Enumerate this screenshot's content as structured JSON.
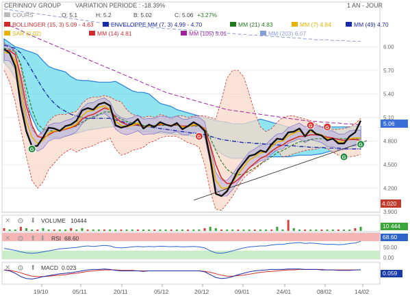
{
  "header": {
    "company": "CERINNOV GROUP",
    "variation": "VARIATION PERIODE : -18.39%",
    "period": "1 AN - JOUR"
  },
  "ohlc": {
    "cours_label": "COURS",
    "open": "O: 5.1",
    "high": "H: 5.2",
    "low": "B: 5.02",
    "close": "C: 5.06",
    "change": "+3.27%"
  },
  "legend": [
    {
      "text": "BOLLINGER (15, 3)  5.09 - 4.63",
      "color": "#d12c2c"
    },
    {
      "text": "ENVELOPPE MM (7, 3)  4.99 - 4.70",
      "color": "#1a2aa8"
    },
    {
      "text": "MM (21)  4.83",
      "color": "#1f7a1f"
    },
    {
      "text": "MM (7)  4.84",
      "color": "#e6b400"
    },
    {
      "text": "MM (49)  4.70",
      "color": "#1a2aa8"
    },
    {
      "text": "SAR (0.02)",
      "color": "#e6b400"
    },
    {
      "text": "MM (14)  4.81",
      "color": "#d12c2c"
    },
    {
      "text": "MM (105)  5.01",
      "color": "#a020a0"
    },
    {
      "text": "MM (203)  6.07",
      "color": "#8a9cd8"
    }
  ],
  "price_axis": {
    "ticks": [
      "6.00",
      "5.70",
      "5.40",
      "5.10",
      "4.800",
      "4.500",
      "4.200",
      "3.900"
    ],
    "current_label": "5.06",
    "low_label": "4.020"
  },
  "x_axis": {
    "labels": [
      "19/10",
      "05/11",
      "20/11",
      "05/12",
      "20/12",
      "09/01",
      "24/01",
      "08/02",
      "14/02"
    ]
  },
  "volume": {
    "title": "VOLUME",
    "value": "10444",
    "badge": "10 444"
  },
  "rsi": {
    "title": "RSI",
    "value": "68.60",
    "badge": "68.60",
    "ticks": [
      "50.00",
      "0.00"
    ]
  },
  "macd": {
    "title": "MACD",
    "value": "0.023",
    "badge": "0.059"
  },
  "colors": {
    "price": "#111111",
    "bollinger": "#d12c2c",
    "envelope_fill": "#5fd8e8",
    "bollinger_fill": "#f8d9c8",
    "inner_band_fill": "#b8aee0",
    "current_badge": "#3b6fd8",
    "low_badge": "#c0392b",
    "rsi_band_top": "#f5b5b5",
    "rsi_band_bottom": "#c9ecc9"
  },
  "chart_data": {
    "type": "line",
    "price": [
      5.97,
      5.92,
      5.75,
      5.25,
      4.92,
      4.73,
      4.74,
      4.85,
      4.97,
      4.96,
      4.93,
      4.99,
      5.01,
      5.06,
      5.19,
      5.22,
      5.2,
      5.27,
      5.29,
      5.25,
      5.0,
      4.97,
      4.99,
      5.02,
      5.08,
      4.96,
      5.01,
      4.98,
      5.04,
      5.01,
      4.99,
      5.03,
      4.95,
      4.99,
      5.04,
      5.0,
      4.93,
      4.57,
      4.13,
      4.1,
      4.16,
      4.29,
      4.43,
      4.52,
      4.61,
      4.63,
      4.68,
      4.66,
      4.76,
      4.83,
      4.82,
      4.91,
      4.92,
      4.96,
      4.86,
      4.95,
      4.89,
      4.87,
      4.81,
      4.83,
      4.77,
      4.77,
      4.86,
      4.91,
      5.06
    ],
    "bollinger_upper": [
      6.05,
      6.0,
      5.95,
      5.75,
      5.35,
      4.98,
      4.86,
      4.93,
      5.05,
      5.12,
      5.14,
      5.14,
      5.16,
      5.18,
      5.28,
      5.34,
      5.36,
      5.36,
      5.38,
      5.36,
      5.32,
      5.3,
      5.2,
      5.14,
      5.12,
      5.1,
      5.12,
      5.1,
      5.14,
      5.12,
      5.08,
      5.12,
      5.12,
      5.1,
      5.12,
      5.12,
      5.12,
      5.1,
      5.08,
      5.32,
      5.6,
      5.7,
      5.7,
      5.62,
      5.4,
      5.16,
      4.98,
      4.92,
      4.96,
      5.04,
      5.1,
      5.12,
      5.12,
      5.1,
      5.08,
      5.06,
      5.02,
      4.98,
      4.96,
      4.95,
      4.95,
      4.96,
      4.98,
      5.02,
      5.09
    ],
    "bollinger_lower": [
      5.7,
      5.55,
      5.3,
      4.95,
      4.6,
      4.3,
      4.2,
      4.28,
      4.44,
      4.52,
      4.6,
      4.66,
      4.7,
      4.66,
      4.7,
      4.72,
      4.74,
      4.78,
      4.8,
      4.84,
      4.7,
      4.62,
      4.64,
      4.68,
      4.7,
      4.72,
      4.78,
      4.8,
      4.84,
      4.86,
      4.86,
      4.86,
      4.82,
      4.78,
      4.76,
      4.72,
      4.5,
      4.16,
      3.93,
      3.92,
      4.0,
      4.1,
      4.22,
      4.33,
      4.39,
      4.44,
      4.5,
      4.58,
      4.66,
      4.68,
      4.6,
      4.61,
      4.64,
      4.66,
      4.68,
      4.69,
      4.7,
      4.72,
      4.7,
      4.66,
      4.62,
      4.6,
      4.6,
      4.61,
      4.63
    ],
    "envelope_upper": [
      6.1,
      6.05,
      6.0,
      5.98,
      5.95,
      5.93,
      5.9,
      5.82,
      5.75,
      5.72,
      5.7,
      5.68,
      5.62,
      5.58,
      5.57,
      5.57,
      5.56,
      5.55,
      5.55,
      5.55,
      5.56,
      5.52,
      5.48,
      5.44,
      5.42,
      5.42,
      5.4,
      5.34,
      5.28,
      5.26,
      5.24,
      5.2,
      5.18,
      5.16,
      5.14,
      5.12,
      5.1,
      5.08,
      5.06,
      5.05,
      5.04,
      5.02,
      5.02,
      5.02,
      5.04,
      5.06,
      5.08,
      5.06,
      5.04,
      5.02,
      5.0,
      4.98,
      4.96,
      4.95,
      4.95,
      4.96,
      4.97,
      4.98,
      4.98,
      4.98,
      4.98,
      4.98,
      4.98,
      4.99,
      4.99
    ],
    "envelope_lower": [
      5.8,
      5.72,
      5.6,
      5.45,
      5.28,
      5.1,
      4.95,
      4.88,
      4.85,
      4.84,
      4.85,
      4.86,
      4.88,
      4.9,
      4.92,
      4.94,
      4.95,
      4.96,
      4.97,
      4.98,
      4.98,
      4.97,
      4.96,
      4.95,
      4.94,
      4.92,
      4.92,
      4.91,
      4.9,
      4.89,
      4.89,
      4.88,
      4.88,
      4.87,
      4.86,
      4.86,
      4.84,
      4.78,
      4.7,
      4.64,
      4.6,
      4.58,
      4.58,
      4.58,
      4.58,
      4.59,
      4.6,
      4.6,
      4.6,
      4.6,
      4.6,
      4.6,
      4.61,
      4.62,
      4.62,
      4.62,
      4.63,
      4.64,
      4.66,
      4.68,
      4.69,
      4.7,
      4.7,
      4.7,
      4.7
    ],
    "mm7": [
      5.93,
      5.92,
      5.82,
      5.45,
      5.05,
      4.85,
      4.77,
      4.81,
      4.9,
      4.93,
      4.93,
      4.96,
      4.98,
      5.02,
      5.12,
      5.18,
      5.19,
      5.23,
      5.25,
      5.2,
      5.05,
      5.0,
      4.98,
      5.0,
      5.03,
      4.98,
      4.99,
      4.99,
      5.02,
      5.01,
      5.0,
      5.02,
      4.98,
      4.98,
      5.01,
      5.0,
      4.95,
      4.62,
      4.3,
      4.2,
      4.2,
      4.28,
      4.38,
      4.47,
      4.56,
      4.6,
      4.65,
      4.66,
      4.73,
      4.79,
      4.8,
      4.87,
      4.9,
      4.93,
      4.88,
      4.92,
      4.9,
      4.88,
      4.83,
      4.83,
      4.79,
      4.79,
      4.83,
      4.84,
      4.84
    ],
    "mm14": [
      5.96,
      5.95,
      5.9,
      5.62,
      5.24,
      5.0,
      4.86,
      4.84,
      4.88,
      4.92,
      4.93,
      4.95,
      4.97,
      5.0,
      5.08,
      5.12,
      5.14,
      5.18,
      5.22,
      5.2,
      5.1,
      5.04,
      5.01,
      5.0,
      5.01,
      4.98,
      4.99,
      4.99,
      5.01,
      5.01,
      5.0,
      5.01,
      4.99,
      4.99,
      5.0,
      5.0,
      4.96,
      4.75,
      4.5,
      4.33,
      4.26,
      4.26,
      4.31,
      4.38,
      4.46,
      4.52,
      4.58,
      4.61,
      4.67,
      4.72,
      4.75,
      4.8,
      4.83,
      4.86,
      4.86,
      4.88,
      4.88,
      4.87,
      4.85,
      4.84,
      4.82,
      4.81,
      4.82,
      4.82,
      4.81
    ],
    "mm21": [
      5.98,
      5.97,
      5.94,
      5.78,
      5.48,
      5.2,
      5.02,
      4.95,
      4.93,
      4.93,
      4.93,
      4.95,
      4.97,
      4.99,
      5.04,
      5.08,
      5.11,
      5.14,
      5.17,
      5.17,
      5.12,
      5.08,
      5.05,
      5.03,
      5.02,
      5.0,
      5.0,
      5.0,
      5.0,
      5.0,
      5.0,
      5.0,
      4.99,
      4.99,
      4.99,
      4.99,
      4.96,
      4.84,
      4.68,
      4.54,
      4.44,
      4.39,
      4.37,
      4.38,
      4.42,
      4.46,
      4.51,
      4.55,
      4.6,
      4.65,
      4.68,
      4.72,
      4.76,
      4.79,
      4.8,
      4.82,
      4.83,
      4.83,
      4.83,
      4.83,
      4.83,
      4.83,
      4.83,
      4.83,
      4.83
    ],
    "mm49": [
      6.02,
      6.0,
      5.98,
      5.92,
      5.82,
      5.7,
      5.58,
      5.46,
      5.36,
      5.28,
      5.22,
      5.18,
      5.14,
      5.12,
      5.1,
      5.09,
      5.09,
      5.09,
      5.09,
      5.09,
      5.07,
      5.05,
      5.03,
      5.01,
      5.0,
      4.99,
      4.98,
      4.97,
      4.96,
      4.95,
      4.94,
      4.93,
      4.92,
      4.91,
      4.9,
      4.89,
      4.88,
      4.86,
      4.84,
      4.82,
      4.81,
      4.8,
      4.79,
      4.78,
      4.78,
      4.77,
      4.77,
      4.76,
      4.76,
      4.75,
      4.75,
      4.74,
      4.74,
      4.73,
      4.73,
      4.72,
      4.72,
      4.72,
      4.71,
      4.71,
      4.71,
      4.7,
      4.7,
      4.7,
      4.7
    ],
    "mm105": [
      6.3,
      6.27,
      6.24,
      6.21,
      6.17,
      6.14,
      6.11,
      6.08,
      6.05,
      6.02,
      5.99,
      5.96,
      5.93,
      5.9,
      5.87,
      5.84,
      5.81,
      5.78,
      5.75,
      5.72,
      5.69,
      5.66,
      5.63,
      5.6,
      5.57,
      5.54,
      5.51,
      5.48,
      5.45,
      5.42,
      5.4,
      5.38,
      5.36,
      5.34,
      5.32,
      5.3,
      5.28,
      5.26,
      5.24,
      5.22,
      5.2,
      5.19,
      5.18,
      5.17,
      5.16,
      5.15,
      5.14,
      5.13,
      5.12,
      5.11,
      5.1,
      5.09,
      5.08,
      5.07,
      5.06,
      5.05,
      5.05,
      5.04,
      5.04,
      5.03,
      5.03,
      5.02,
      5.02,
      5.01,
      5.01
    ],
    "mm203": [
      6.48,
      6.47,
      6.46,
      6.45,
      6.44,
      6.43,
      6.42,
      6.41,
      6.4,
      6.39,
      6.38,
      6.37,
      6.36,
      6.35,
      6.34,
      6.33,
      6.32,
      6.31,
      6.3,
      6.29,
      6.28,
      6.27,
      6.27,
      6.26,
      6.26,
      6.25,
      6.25,
      6.24,
      6.24,
      6.23,
      6.23,
      6.22,
      6.22,
      6.21,
      6.21,
      6.2,
      6.19,
      6.19,
      6.18,
      6.18,
      6.17,
      6.17,
      6.16,
      6.16,
      6.15,
      6.15,
      6.14,
      6.14,
      6.13,
      6.13,
      6.12,
      6.12,
      6.11,
      6.11,
      6.1,
      6.1,
      6.09,
      6.09,
      6.09,
      6.08,
      6.08,
      6.08,
      6.07,
      6.07,
      6.07
    ],
    "signals": [
      {
        "type": "green",
        "index": 5,
        "price": 4.7
      },
      {
        "type": "red",
        "index": 35,
        "price": 4.86
      },
      {
        "type": "red",
        "index": 55,
        "price": 5.0
      },
      {
        "type": "red",
        "index": 58,
        "price": 4.98
      },
      {
        "type": "green",
        "index": 61,
        "price": 4.6
      },
      {
        "type": "green",
        "index": 64,
        "price": 4.76
      }
    ],
    "volume_values": [
      2,
      1,
      1,
      3,
      2,
      1,
      1,
      2,
      1,
      1,
      1,
      1,
      2,
      1,
      2,
      1,
      1,
      1,
      1,
      1,
      1,
      1,
      1,
      1,
      1,
      1,
      1,
      1,
      1,
      1,
      1,
      1,
      1,
      1,
      1,
      1,
      2,
      3,
      2,
      1,
      1,
      1,
      1,
      1,
      1,
      1,
      1,
      1,
      1,
      3,
      1,
      8,
      2,
      1,
      1,
      1,
      1,
      1,
      1,
      1,
      1,
      1,
      1,
      2,
      3
    ],
    "rsi_values": [
      40,
      36,
      32,
      26,
      22,
      20,
      22,
      26,
      30,
      34,
      38,
      40,
      42,
      44,
      48,
      50,
      48,
      50,
      52,
      50,
      44,
      42,
      44,
      46,
      48,
      46,
      48,
      47,
      49,
      48,
      47,
      48,
      46,
      47,
      48,
      46,
      42,
      30,
      22,
      20,
      24,
      30,
      36,
      42,
      46,
      48,
      50,
      50,
      54,
      56,
      56,
      60,
      62,
      64,
      60,
      62,
      60,
      58,
      56,
      57,
      55,
      56,
      60,
      62,
      68.6
    ],
    "macd_values": [
      0.02,
      0.0,
      -0.05,
      -0.12,
      -0.16,
      -0.17,
      -0.15,
      -0.12,
      -0.1,
      -0.08,
      -0.06,
      -0.05,
      -0.04,
      -0.02,
      0.0,
      0.02,
      0.03,
      0.03,
      0.04,
      0.03,
      0.01,
      0.0,
      0.0,
      0.0,
      0.0,
      -0.01,
      0.0,
      0.0,
      0.0,
      0.0,
      0.0,
      0.0,
      0.0,
      0.0,
      0.0,
      0.0,
      -0.02,
      -0.08,
      -0.14,
      -0.16,
      -0.15,
      -0.12,
      -0.08,
      -0.05,
      -0.02,
      0.0,
      0.01,
      0.02,
      0.03,
      0.03,
      0.03,
      0.04,
      0.04,
      0.04,
      0.03,
      0.03,
      0.03,
      0.02,
      0.02,
      0.02,
      0.01,
      0.01,
      0.01,
      0.02,
      0.023
    ],
    "macd_signal": [
      0.02,
      0.01,
      -0.01,
      -0.04,
      -0.08,
      -0.11,
      -0.12,
      -0.12,
      -0.11,
      -0.1,
      -0.09,
      -0.08,
      -0.06,
      -0.05,
      -0.03,
      -0.01,
      0.0,
      0.01,
      0.02,
      0.02,
      0.02,
      0.01,
      0.01,
      0.01,
      0.0,
      0.0,
      0.0,
      0.0,
      0.0,
      0.0,
      0.0,
      0.0,
      0.0,
      0.0,
      0.0,
      0.0,
      -0.01,
      -0.03,
      -0.06,
      -0.09,
      -0.11,
      -0.11,
      -0.1,
      -0.09,
      -0.07,
      -0.05,
      -0.03,
      -0.02,
      -0.01,
      0.0,
      0.01,
      0.02,
      0.02,
      0.03,
      0.03,
      0.03,
      0.03,
      0.03,
      0.02,
      0.02,
      0.02,
      0.02,
      0.02,
      0.02,
      0.02
    ],
    "ylim": [
      3.9,
      6.3
    ],
    "rsi_ylim": [
      0,
      100
    ],
    "macd_ylim": [
      -0.25,
      0.15
    ]
  }
}
